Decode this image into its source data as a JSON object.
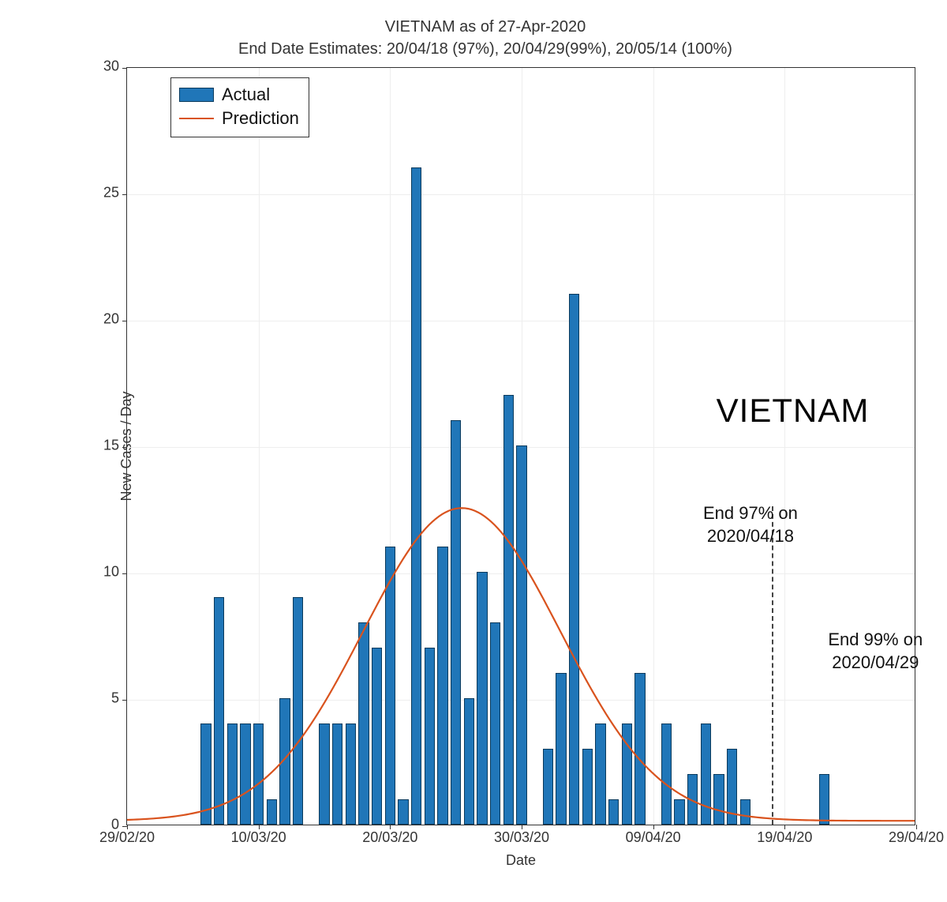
{
  "chart": {
    "type": "bar+line",
    "title_line1": "VIETNAM as of 27-Apr-2020",
    "title_line2": "End Date Estimates: 20/04/18 (97%), 20/04/29(99%), 20/05/14 (100%)",
    "title_fontsize": 20,
    "background_color": "#ffffff",
    "grid_color": "#eeeeee",
    "axis_color": "#333333",
    "x_range_days": {
      "start": 0,
      "end": 60
    },
    "xlabel": "Date",
    "ylabel": "New Cases / Day",
    "label_fontsize": 18,
    "tick_fontsize": 18,
    "ylim": [
      0,
      30
    ],
    "ytick_step": 5,
    "x_ticks": [
      {
        "day": 0,
        "label": "29/02/20"
      },
      {
        "day": 10,
        "label": "10/03/20"
      },
      {
        "day": 20,
        "label": "20/03/20"
      },
      {
        "day": 30,
        "label": "30/03/20"
      },
      {
        "day": 40,
        "label": "09/04/20"
      },
      {
        "day": 50,
        "label": "19/04/20"
      },
      {
        "day": 60,
        "label": "29/04/20"
      }
    ],
    "bars": {
      "color": "#2076b8",
      "border_color": "#0a3a5c",
      "bar_width_days": 0.82,
      "series_label": "Actual",
      "data": [
        {
          "day": 6,
          "value": 4
        },
        {
          "day": 7,
          "value": 9
        },
        {
          "day": 8,
          "value": 4
        },
        {
          "day": 9,
          "value": 4
        },
        {
          "day": 10,
          "value": 4
        },
        {
          "day": 11,
          "value": 1
        },
        {
          "day": 12,
          "value": 5
        },
        {
          "day": 13,
          "value": 9
        },
        {
          "day": 14,
          "value": 0
        },
        {
          "day": 15,
          "value": 4
        },
        {
          "day": 16,
          "value": 4
        },
        {
          "day": 17,
          "value": 4
        },
        {
          "day": 18,
          "value": 8
        },
        {
          "day": 19,
          "value": 7
        },
        {
          "day": 20,
          "value": 11
        },
        {
          "day": 21,
          "value": 1
        },
        {
          "day": 22,
          "value": 26
        },
        {
          "day": 23,
          "value": 7
        },
        {
          "day": 24,
          "value": 11
        },
        {
          "day": 25,
          "value": 16
        },
        {
          "day": 26,
          "value": 5
        },
        {
          "day": 27,
          "value": 10
        },
        {
          "day": 28,
          "value": 8
        },
        {
          "day": 29,
          "value": 17
        },
        {
          "day": 30,
          "value": 15
        },
        {
          "day": 31,
          "value": 0
        },
        {
          "day": 32,
          "value": 3
        },
        {
          "day": 33,
          "value": 6
        },
        {
          "day": 34,
          "value": 21
        },
        {
          "day": 35,
          "value": 3
        },
        {
          "day": 36,
          "value": 4
        },
        {
          "day": 37,
          "value": 1
        },
        {
          "day": 38,
          "value": 4
        },
        {
          "day": 39,
          "value": 6
        },
        {
          "day": 40,
          "value": 0
        },
        {
          "day": 41,
          "value": 4
        },
        {
          "day": 42,
          "value": 1
        },
        {
          "day": 43,
          "value": 2
        },
        {
          "day": 44,
          "value": 4
        },
        {
          "day": 45,
          "value": 2
        },
        {
          "day": 46,
          "value": 3
        },
        {
          "day": 47,
          "value": 1
        },
        {
          "day": 53,
          "value": 2
        }
      ]
    },
    "curve": {
      "color": "#d9531e",
      "line_width": 2.2,
      "series_label": "Prediction",
      "type": "gaussian",
      "amplitude": 12.4,
      "mean_day": 25.5,
      "sigma_days": 7.5,
      "baseline": 0.15
    },
    "vertical_markers": [
      {
        "day": 49,
        "style": "dashed",
        "color": "#444444",
        "width": 2,
        "top_value": 12.6
      }
    ],
    "annotations": [
      {
        "text_line1": "End 97% on",
        "text_line2": "2020/04/18",
        "day": 48,
        "value": 12.8,
        "fontsize": 22,
        "align": "center"
      },
      {
        "text_line1": "End 99% on",
        "text_line2": "2020/04/29",
        "day": 57.5,
        "value": 7.8,
        "fontsize": 22,
        "align": "center"
      }
    ],
    "big_label": {
      "text": "VIETNAM",
      "day": 52,
      "value": 17.2,
      "fontsize": 42
    },
    "legend": {
      "position": "top-left",
      "border_color": "#333333",
      "fontsize": 22,
      "items": [
        {
          "type": "bar",
          "label": "Actual"
        },
        {
          "type": "line",
          "label": "Prediction"
        }
      ]
    }
  }
}
